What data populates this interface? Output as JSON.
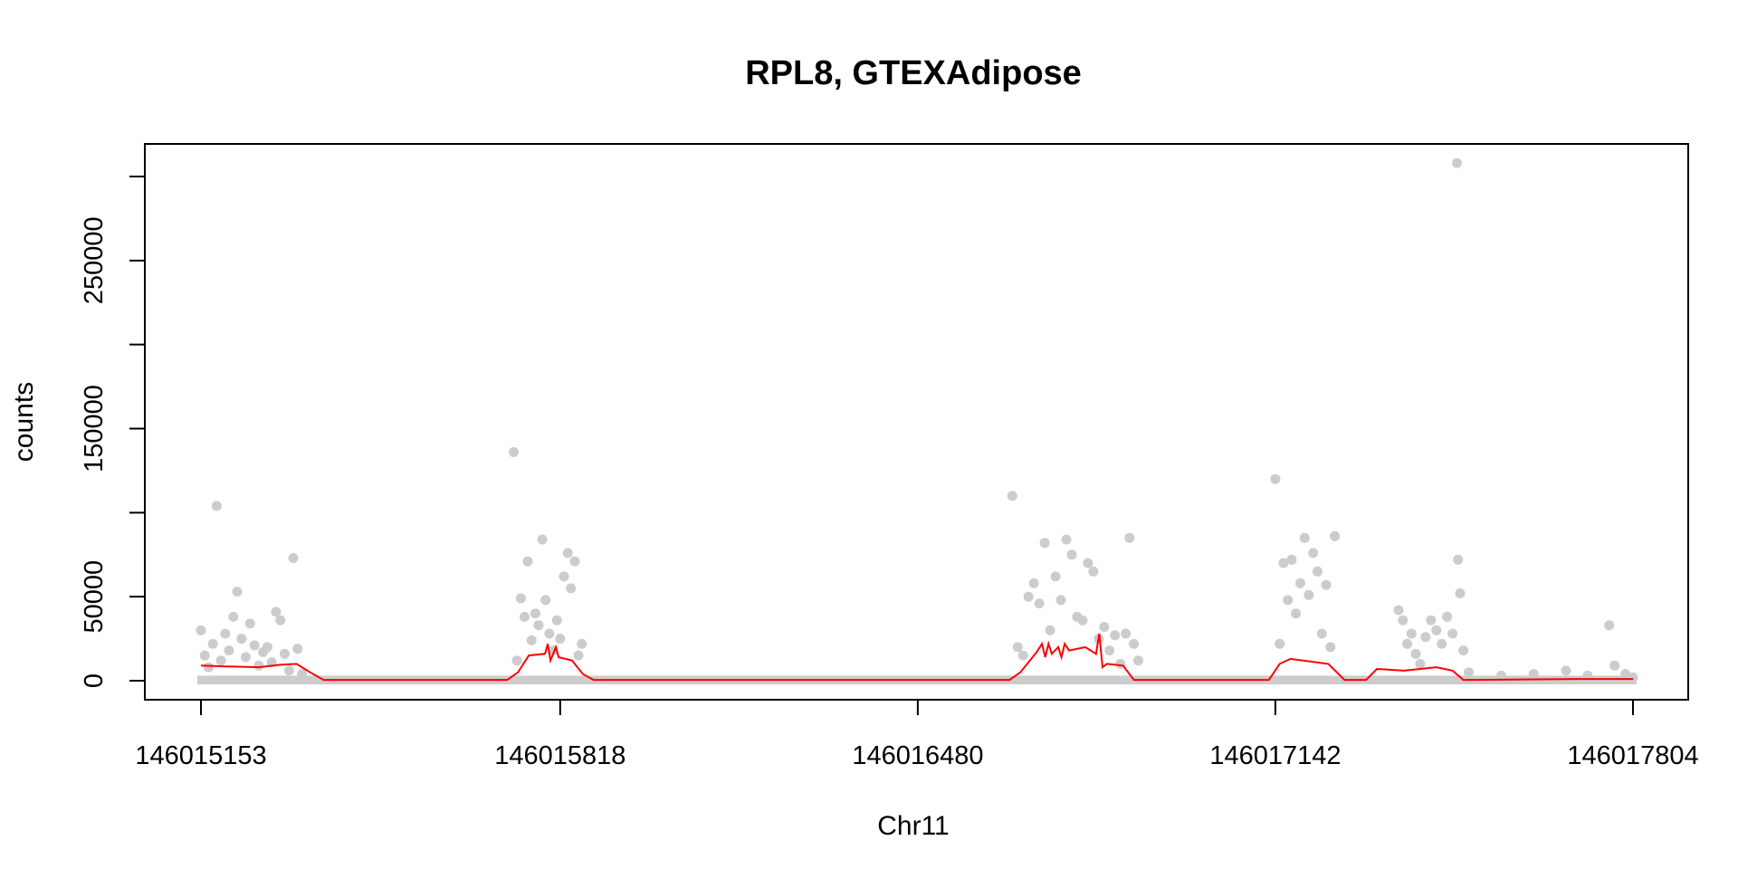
{
  "chart_data": {
    "type": "scatter",
    "title": "RPL8, GTEXAdipose",
    "xlabel": "Chr11",
    "ylabel": "counts",
    "xlim": [
      146015153,
      146017804
    ],
    "ylim": [
      0,
      300000
    ],
    "x_ticks": [
      146015153,
      146015818,
      146016480,
      146017142,
      146017804
    ],
    "x_tick_labels": [
      "146015153",
      "146015818",
      "146016480",
      "146017142",
      "146017804"
    ],
    "y_ticks": [
      0,
      50000,
      100000,
      150000,
      200000,
      250000,
      300000
    ],
    "y_tick_labels": [
      "0",
      "50000",
      "",
      "150000",
      "",
      "250000",
      ""
    ],
    "grid": false,
    "colors": {
      "points": "#cccccc",
      "line": "#ff0000"
    },
    "series": [
      {
        "kind": "points",
        "color": "#cccccc",
        "points": [
          [
            146015153,
            30000
          ],
          [
            146015160,
            15000
          ],
          [
            146015167,
            8000
          ],
          [
            146015175,
            22000
          ],
          [
            146015182,
            104000
          ],
          [
            146015190,
            12000
          ],
          [
            146015198,
            28000
          ],
          [
            146015205,
            18000
          ],
          [
            146015213,
            38000
          ],
          [
            146015220,
            53000
          ],
          [
            146015228,
            25000
          ],
          [
            146015236,
            14000
          ],
          [
            146015244,
            34000
          ],
          [
            146015252,
            21000
          ],
          [
            146015260,
            9000
          ],
          [
            146015268,
            17000
          ],
          [
            146015276,
            20000
          ],
          [
            146015284,
            11000
          ],
          [
            146015292,
            41000
          ],
          [
            146015300,
            36000
          ],
          [
            146015308,
            16000
          ],
          [
            146015316,
            6000
          ],
          [
            146015324,
            73000
          ],
          [
            146015332,
            19000
          ],
          [
            146015340,
            4000
          ],
          [
            146015732,
            136000
          ],
          [
            146015738,
            12000
          ],
          [
            146015745,
            49000
          ],
          [
            146015752,
            38000
          ],
          [
            146015758,
            71000
          ],
          [
            146015765,
            24000
          ],
          [
            146015772,
            40000
          ],
          [
            146015778,
            33000
          ],
          [
            146015785,
            84000
          ],
          [
            146015791,
            48000
          ],
          [
            146015798,
            28000
          ],
          [
            146015805,
            18000
          ],
          [
            146015812,
            36000
          ],
          [
            146015818,
            25000
          ],
          [
            146015825,
            62000
          ],
          [
            146015832,
            76000
          ],
          [
            146015838,
            55000
          ],
          [
            146015845,
            71000
          ],
          [
            146015852,
            15000
          ],
          [
            146015858,
            22000
          ],
          [
            146016655,
            110000
          ],
          [
            146016665,
            20000
          ],
          [
            146016675,
            15000
          ],
          [
            146016685,
            50000
          ],
          [
            146016695,
            58000
          ],
          [
            146016705,
            46000
          ],
          [
            146016715,
            82000
          ],
          [
            146016725,
            30000
          ],
          [
            146016735,
            62000
          ],
          [
            146016745,
            48000
          ],
          [
            146016755,
            84000
          ],
          [
            146016765,
            75000
          ],
          [
            146016775,
            38000
          ],
          [
            146016785,
            36000
          ],
          [
            146016795,
            70000
          ],
          [
            146016805,
            65000
          ],
          [
            146016815,
            25000
          ],
          [
            146016825,
            32000
          ],
          [
            146016835,
            18000
          ],
          [
            146016845,
            27000
          ],
          [
            146016855,
            10000
          ],
          [
            146016865,
            28000
          ],
          [
            146016872,
            85000
          ],
          [
            146016880,
            22000
          ],
          [
            146016888,
            12000
          ],
          [
            146017142,
            120000
          ],
          [
            146017150,
            22000
          ],
          [
            146017157,
            70000
          ],
          [
            146017165,
            48000
          ],
          [
            146017172,
            72000
          ],
          [
            146017180,
            40000
          ],
          [
            146017188,
            58000
          ],
          [
            146017196,
            85000
          ],
          [
            146017204,
            51000
          ],
          [
            146017212,
            76000
          ],
          [
            146017220,
            65000
          ],
          [
            146017228,
            28000
          ],
          [
            146017236,
            57000
          ],
          [
            146017244,
            20000
          ],
          [
            146017252,
            86000
          ],
          [
            146017370,
            42000
          ],
          [
            146017378,
            36000
          ],
          [
            146017386,
            22000
          ],
          [
            146017394,
            28000
          ],
          [
            146017402,
            16000
          ],
          [
            146017410,
            10000
          ],
          [
            146017420,
            26000
          ],
          [
            146017430,
            36000
          ],
          [
            146017440,
            30000
          ],
          [
            146017450,
            22000
          ],
          [
            146017460,
            38000
          ],
          [
            146017470,
            28000
          ],
          [
            146017478,
            308000
          ],
          [
            146017480,
            72000
          ],
          [
            146017484,
            52000
          ],
          [
            146017490,
            18000
          ],
          [
            146017500,
            5000
          ],
          [
            146017560,
            3000
          ],
          [
            146017620,
            4000
          ],
          [
            146017680,
            6000
          ],
          [
            146017720,
            3000
          ],
          [
            146017760,
            33000
          ],
          [
            146017770,
            9000
          ],
          [
            146017790,
            4000
          ],
          [
            146017804,
            2000
          ]
        ]
      },
      {
        "kind": "line",
        "color": "#ff0000",
        "points": [
          [
            146015153,
            9000
          ],
          [
            146015200,
            8500
          ],
          [
            146015260,
            8000
          ],
          [
            146015300,
            9500
          ],
          [
            146015330,
            10000
          ],
          [
            146015355,
            5000
          ],
          [
            146015380,
            500
          ],
          [
            146015720,
            500
          ],
          [
            146015740,
            5000
          ],
          [
            146015760,
            15000
          ],
          [
            146015790,
            16000
          ],
          [
            146015795,
            22000
          ],
          [
            146015800,
            12000
          ],
          [
            146015810,
            20000
          ],
          [
            146015815,
            14000
          ],
          [
            146015840,
            12000
          ],
          [
            146015860,
            4000
          ],
          [
            146015880,
            500
          ],
          [
            146016650,
            500
          ],
          [
            146016670,
            5000
          ],
          [
            146016700,
            17000
          ],
          [
            146016710,
            22000
          ],
          [
            146016716,
            14000
          ],
          [
            146016722,
            22000
          ],
          [
            146016728,
            16000
          ],
          [
            146016740,
            20000
          ],
          [
            146016746,
            14000
          ],
          [
            146016752,
            22000
          ],
          [
            146016760,
            18000
          ],
          [
            146016790,
            20000
          ],
          [
            146016810,
            16000
          ],
          [
            146016816,
            28000
          ],
          [
            146016822,
            8000
          ],
          [
            146016830,
            10000
          ],
          [
            146016860,
            9000
          ],
          [
            146016880,
            500
          ],
          [
            146017130,
            500
          ],
          [
            146017150,
            10000
          ],
          [
            146017170,
            13000
          ],
          [
            146017240,
            10000
          ],
          [
            146017270,
            500
          ],
          [
            146017310,
            500
          ],
          [
            146017330,
            7000
          ],
          [
            146017380,
            6000
          ],
          [
            146017440,
            8000
          ],
          [
            146017470,
            6000
          ],
          [
            146017490,
            500
          ],
          [
            146017700,
            1000
          ],
          [
            146017804,
            1000
          ]
        ]
      }
    ]
  }
}
